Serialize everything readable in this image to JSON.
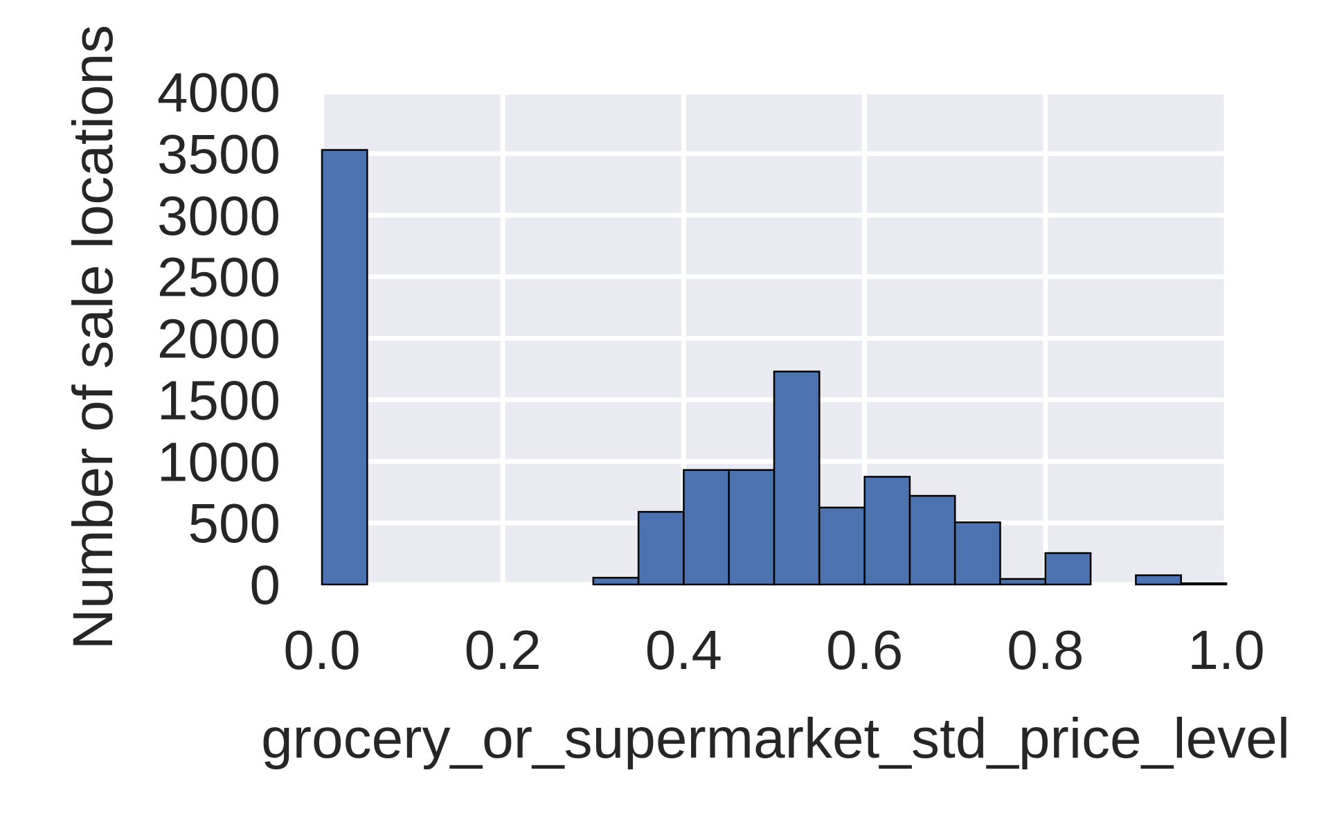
{
  "chart_data": {
    "type": "bar",
    "xlabel": "grocery_or_supermarket_std_price_level",
    "ylabel": "Number of sale locations",
    "xlim": [
      0.0,
      1.0
    ],
    "ylim": [
      0,
      4000
    ],
    "xticks": [
      "0.0",
      "0.2",
      "0.4",
      "0.6",
      "0.8",
      "1.0"
    ],
    "yticks": [
      "4000",
      "3500",
      "3000",
      "2500",
      "2000",
      "1500",
      "1000",
      "500",
      "0"
    ],
    "grid": true,
    "bin_edges": [
      0.0,
      0.05,
      0.1,
      0.15,
      0.2,
      0.25,
      0.3,
      0.35,
      0.4,
      0.45,
      0.5,
      0.55,
      0.6,
      0.65,
      0.7,
      0.75,
      0.8,
      0.85,
      0.9,
      0.95,
      1.0
    ],
    "values": [
      3530,
      0,
      0,
      0,
      0,
      0,
      55,
      590,
      930,
      930,
      1730,
      625,
      875,
      720,
      505,
      45,
      255,
      0,
      75,
      10
    ],
    "colors": {
      "bar": "#4c72b0",
      "edge": "#000000",
      "plot_background": "#eaeaf2",
      "grid": "#ffffff",
      "text": "#262626"
    }
  }
}
